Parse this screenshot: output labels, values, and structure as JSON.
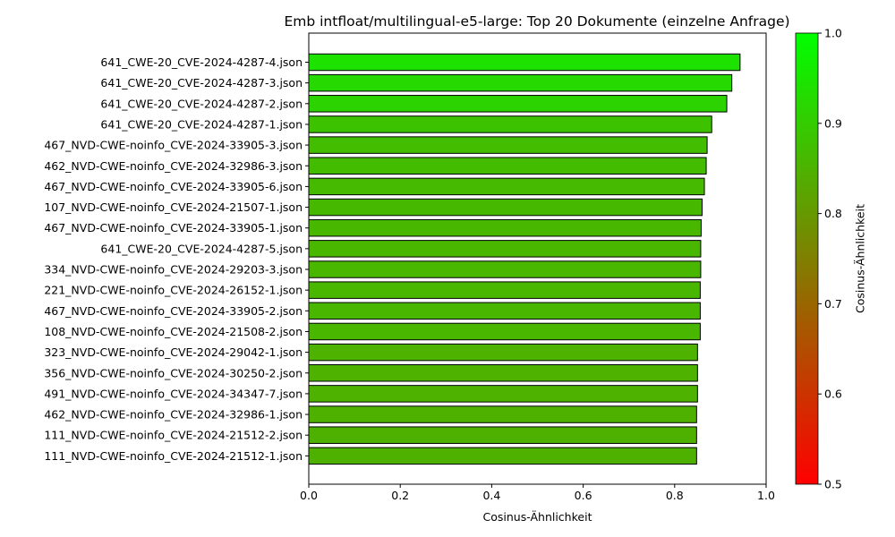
{
  "chart_data": {
    "type": "bar",
    "orientation": "horizontal",
    "title": "Emb intfloat/multilingual-e5-large: Top 20 Dokumente (einzelne Anfrage)",
    "xlabel": "Cosinus-Ähnlichkeit",
    "ylabel": "",
    "xlim": [
      0.0,
      1.0
    ],
    "x_ticks": [
      "0.0",
      "0.2",
      "0.4",
      "0.6",
      "0.8",
      "1.0"
    ],
    "grid": false,
    "categories": [
      "641_CWE-20_CVE-2024-4287-4.json",
      "641_CWE-20_CVE-2024-4287-3.json",
      "641_CWE-20_CVE-2024-4287-2.json",
      "641_CWE-20_CVE-2024-4287-1.json",
      "467_NVD-CWE-noinfo_CVE-2024-33905-3.json",
      "462_NVD-CWE-noinfo_CVE-2024-32986-3.json",
      "467_NVD-CWE-noinfo_CVE-2024-33905-6.json",
      "107_NVD-CWE-noinfo_CVE-2024-21507-1.json",
      "467_NVD-CWE-noinfo_CVE-2024-33905-1.json",
      "641_CWE-20_CVE-2024-4287-5.json",
      "334_NVD-CWE-noinfo_CVE-2024-29203-3.json",
      "221_NVD-CWE-noinfo_CVE-2024-26152-1.json",
      "467_NVD-CWE-noinfo_CVE-2024-33905-2.json",
      "108_NVD-CWE-noinfo_CVE-2024-21508-2.json",
      "323_NVD-CWE-noinfo_CVE-2024-29042-1.json",
      "356_NVD-CWE-noinfo_CVE-2024-30250-2.json",
      "491_NVD-CWE-noinfo_CVE-2024-34347-7.json",
      "462_NVD-CWE-noinfo_CVE-2024-32986-1.json",
      "111_NVD-CWE-noinfo_CVE-2024-21512-2.json",
      "111_NVD-CWE-noinfo_CVE-2024-21512-1.json"
    ],
    "values": [
      0.943,
      0.925,
      0.914,
      0.881,
      0.871,
      0.869,
      0.865,
      0.86,
      0.858,
      0.857,
      0.857,
      0.856,
      0.856,
      0.856,
      0.85,
      0.85,
      0.85,
      0.848,
      0.848,
      0.848
    ],
    "colorbar": {
      "label": "Cosinus-Ähnlichkeit",
      "range": [
        0.5,
        1.0
      ],
      "ticks": [
        "0.5",
        "0.6",
        "0.7",
        "0.8",
        "0.9",
        "1.0"
      ],
      "color_low": "#ff0000",
      "color_high": "#00ff00"
    },
    "bar_edge_color": "#000000"
  }
}
